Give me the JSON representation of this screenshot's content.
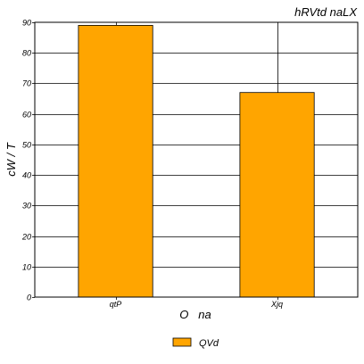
{
  "chart_data": {
    "type": "bar",
    "title": "hRVtd naLX",
    "xlabel": "O   na",
    "ylabel": "cW / T",
    "categories": [
      "qtP",
      "Xjq"
    ],
    "series": [
      {
        "name": "QVd",
        "values": [
          89,
          67
        ],
        "color": "#ffa500"
      }
    ],
    "ylim": [
      0,
      90
    ],
    "yticks": [
      0,
      10,
      20,
      30,
      40,
      50,
      60,
      70,
      80,
      90
    ],
    "grid": true,
    "legend": "bottom-center"
  }
}
